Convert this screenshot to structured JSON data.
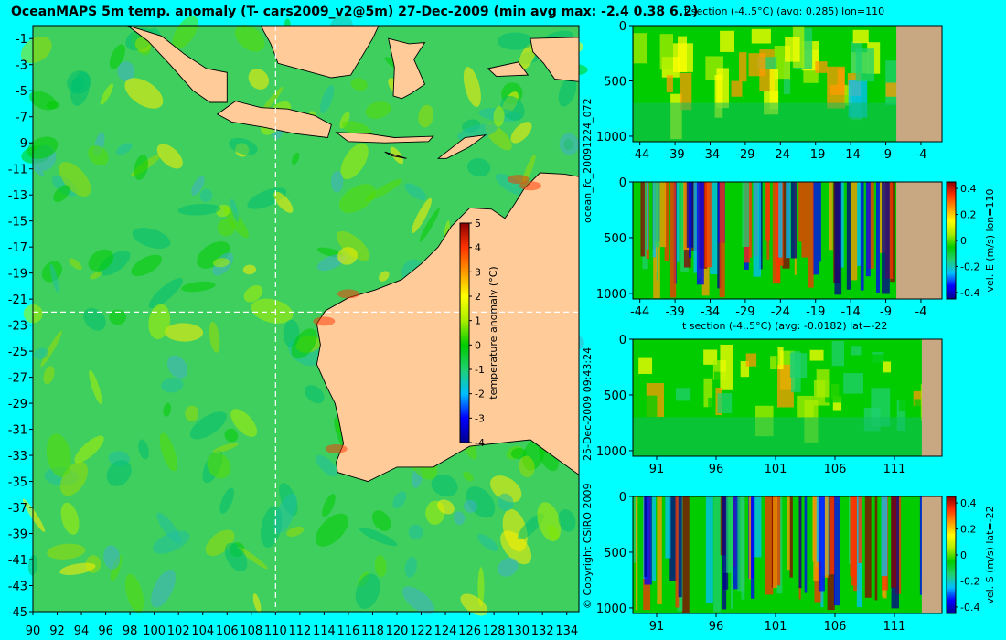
{
  "title": "OceanMAPS 5m temp. anomaly (T- cars2009_v2@5m) 27-Dec-2009 (min avg max: -2.4 0.38 6.2)",
  "side_texts": {
    "forecast_id": "ocean_fc_20091224_072",
    "run_time": "25-Dec-2009 09:43:24",
    "copyright": "© Copyright CSIRO 2009"
  },
  "colors": {
    "background": "#00ffff",
    "land": "#ffcc99",
    "section_land": "#c8a882",
    "crosshair": "#ffffff",
    "colormap": [
      "#00008f",
      "#0000ff",
      "#00bfff",
      "#20d070",
      "#00cc00",
      "#aaee00",
      "#ffff00",
      "#ff9900",
      "#ff3300",
      "#8b0000"
    ]
  },
  "chart_data": [
    {
      "id": "map",
      "type": "heatmap",
      "title": "OceanMAPS 5m temp. anomaly (T- cars2009_v2@5m) 27-Dec-2009 (min avg max: -2.4 0.38 6.2)",
      "xlim": [
        90,
        135
      ],
      "ylim": [
        -45,
        0
      ],
      "xticks": [
        90,
        92,
        94,
        96,
        98,
        100,
        102,
        104,
        106,
        108,
        110,
        112,
        114,
        116,
        118,
        120,
        122,
        124,
        126,
        128,
        130,
        132,
        134
      ],
      "yticks": [
        -1,
        -3,
        -5,
        -7,
        -9,
        -11,
        -13,
        -15,
        -17,
        -19,
        -21,
        -23,
        -25,
        -27,
        -29,
        -31,
        -33,
        -35,
        -37,
        -39,
        -41,
        -43,
        -45
      ],
      "crosshair": {
        "lon": 110,
        "lat": -22
      },
      "stats": {
        "min": -2.4,
        "avg": 0.38,
        "max": 6.2
      },
      "colorbar": {
        "label": "temperature anomaly (°C)",
        "range": [
          -4,
          5
        ],
        "ticks": [
          -4,
          -3,
          -2,
          -1,
          0,
          1,
          2,
          3,
          4,
          5
        ]
      }
    },
    {
      "id": "tsec_lon",
      "type": "heatmap",
      "title": "t section (-4..5°C) (avg: 0.285) lon=110",
      "xlim": [
        -45,
        -1
      ],
      "xticks": [
        -44,
        -39,
        -34,
        -29,
        -24,
        -19,
        -14,
        -9,
        -4
      ],
      "ylim": [
        0,
        1050
      ],
      "yticks": [
        0,
        500,
        1000
      ],
      "land_from": -7.5
    },
    {
      "id": "vel_e",
      "type": "heatmap",
      "title": "",
      "xlim": [
        -45,
        -1
      ],
      "xticks": [
        -44,
        -39,
        -34,
        -29,
        -24,
        -19,
        -14,
        -9,
        -4
      ],
      "ylim": [
        0,
        1050
      ],
      "yticks": [
        0,
        500,
        1000
      ],
      "land_from": -7.5,
      "colorbar": {
        "label": "vel. E (m/s) lon=110",
        "range": [
          -0.45,
          0.45
        ],
        "ticks": [
          -0.4,
          -0.2,
          0,
          0.2,
          0.4
        ]
      }
    },
    {
      "id": "tsec_lat",
      "type": "heatmap",
      "title": "t section (-4..5°C) (avg: -0.0182) lat=-22",
      "xlim": [
        89,
        115
      ],
      "xticks": [
        91,
        96,
        101,
        106,
        111
      ],
      "ylim": [
        0,
        1050
      ],
      "yticks": [
        0,
        500,
        1000
      ],
      "land_from": 113.3
    },
    {
      "id": "vel_s",
      "type": "heatmap",
      "title": "",
      "xlim": [
        89,
        115
      ],
      "xticks": [
        91,
        96,
        101,
        106,
        111
      ],
      "ylim": [
        0,
        1050
      ],
      "yticks": [
        0,
        500,
        1000
      ],
      "land_from": 113.3,
      "colorbar": {
        "label": "vel. S (m/s) lat=-22",
        "range": [
          -0.45,
          0.45
        ],
        "ticks": [
          -0.4,
          -0.2,
          0,
          0.2,
          0.4
        ]
      }
    }
  ]
}
